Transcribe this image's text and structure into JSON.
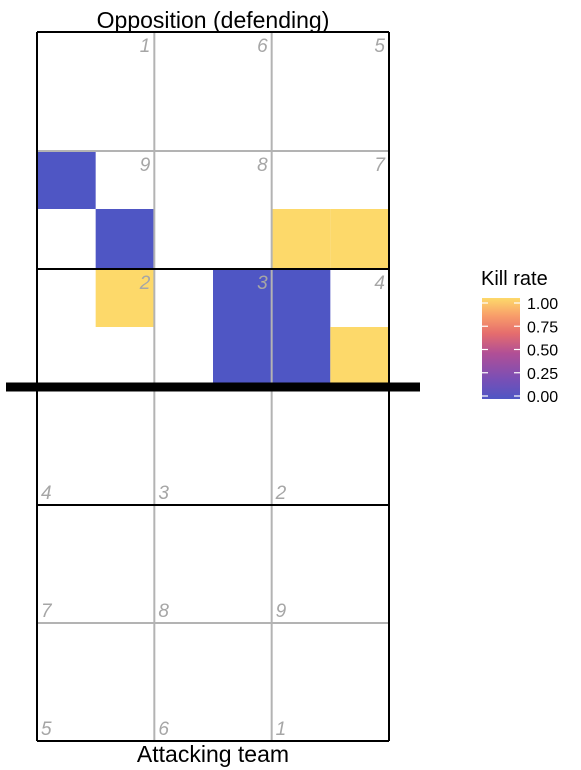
{
  "chart_data": {
    "type": "heatmap",
    "title_top": "Opposition (defending)",
    "title_bottom": "Attacking team",
    "legend": {
      "title": "Kill rate",
      "ticks": [
        "1.00",
        "0.75",
        "0.50",
        "0.25",
        "0.00"
      ],
      "tick_values": [
        1.0,
        0.75,
        0.5,
        0.25,
        0.0
      ],
      "range": [
        0,
        1
      ],
      "colors": [
        "#4f56c4",
        "#7a4fb5",
        "#b04f96",
        "#e56d6d",
        "#f89c6a",
        "#fdd96a"
      ]
    },
    "zone_labels_opposition": [
      {
        "zone": "1",
        "col": 0,
        "row": 0
      },
      {
        "zone": "6",
        "col": 1,
        "row": 0
      },
      {
        "zone": "5",
        "col": 2,
        "row": 0
      },
      {
        "zone": "9",
        "col": 0,
        "row": 1
      },
      {
        "zone": "8",
        "col": 1,
        "row": 1
      },
      {
        "zone": "7",
        "col": 2,
        "row": 1
      },
      {
        "zone": "2",
        "col": 0,
        "row": 2
      },
      {
        "zone": "3",
        "col": 1,
        "row": 2
      },
      {
        "zone": "4",
        "col": 2,
        "row": 2
      }
    ],
    "zone_labels_attacking": [
      {
        "zone": "4",
        "col": 0,
        "row": 3
      },
      {
        "zone": "3",
        "col": 1,
        "row": 3
      },
      {
        "zone": "2",
        "col": 2,
        "row": 3
      },
      {
        "zone": "7",
        "col": 0,
        "row": 4
      },
      {
        "zone": "8",
        "col": 1,
        "row": 4
      },
      {
        "zone": "9",
        "col": 2,
        "row": 4
      },
      {
        "zone": "5",
        "col": 0,
        "row": 5
      },
      {
        "zone": "6",
        "col": 1,
        "row": 5
      },
      {
        "zone": "1",
        "col": 2,
        "row": 5
      }
    ],
    "cells": [
      {
        "col": 0,
        "row": 2,
        "value": 0.0
      },
      {
        "col": 1,
        "row": 3,
        "value": 0.0
      },
      {
        "col": 4,
        "row": 3,
        "value": 1.0
      },
      {
        "col": 5,
        "row": 3,
        "value": 1.0
      },
      {
        "col": 1,
        "row": 4,
        "value": 1.0
      },
      {
        "col": 3,
        "row": 4,
        "value": 0.0
      },
      {
        "col": 3,
        "row": 5,
        "value": 0.0
      },
      {
        "col": 4,
        "row": 4,
        "value": 0.0
      },
      {
        "col": 4,
        "row": 5,
        "value": 0.0
      },
      {
        "col": 5,
        "row": 5,
        "value": 1.0
      }
    ]
  }
}
